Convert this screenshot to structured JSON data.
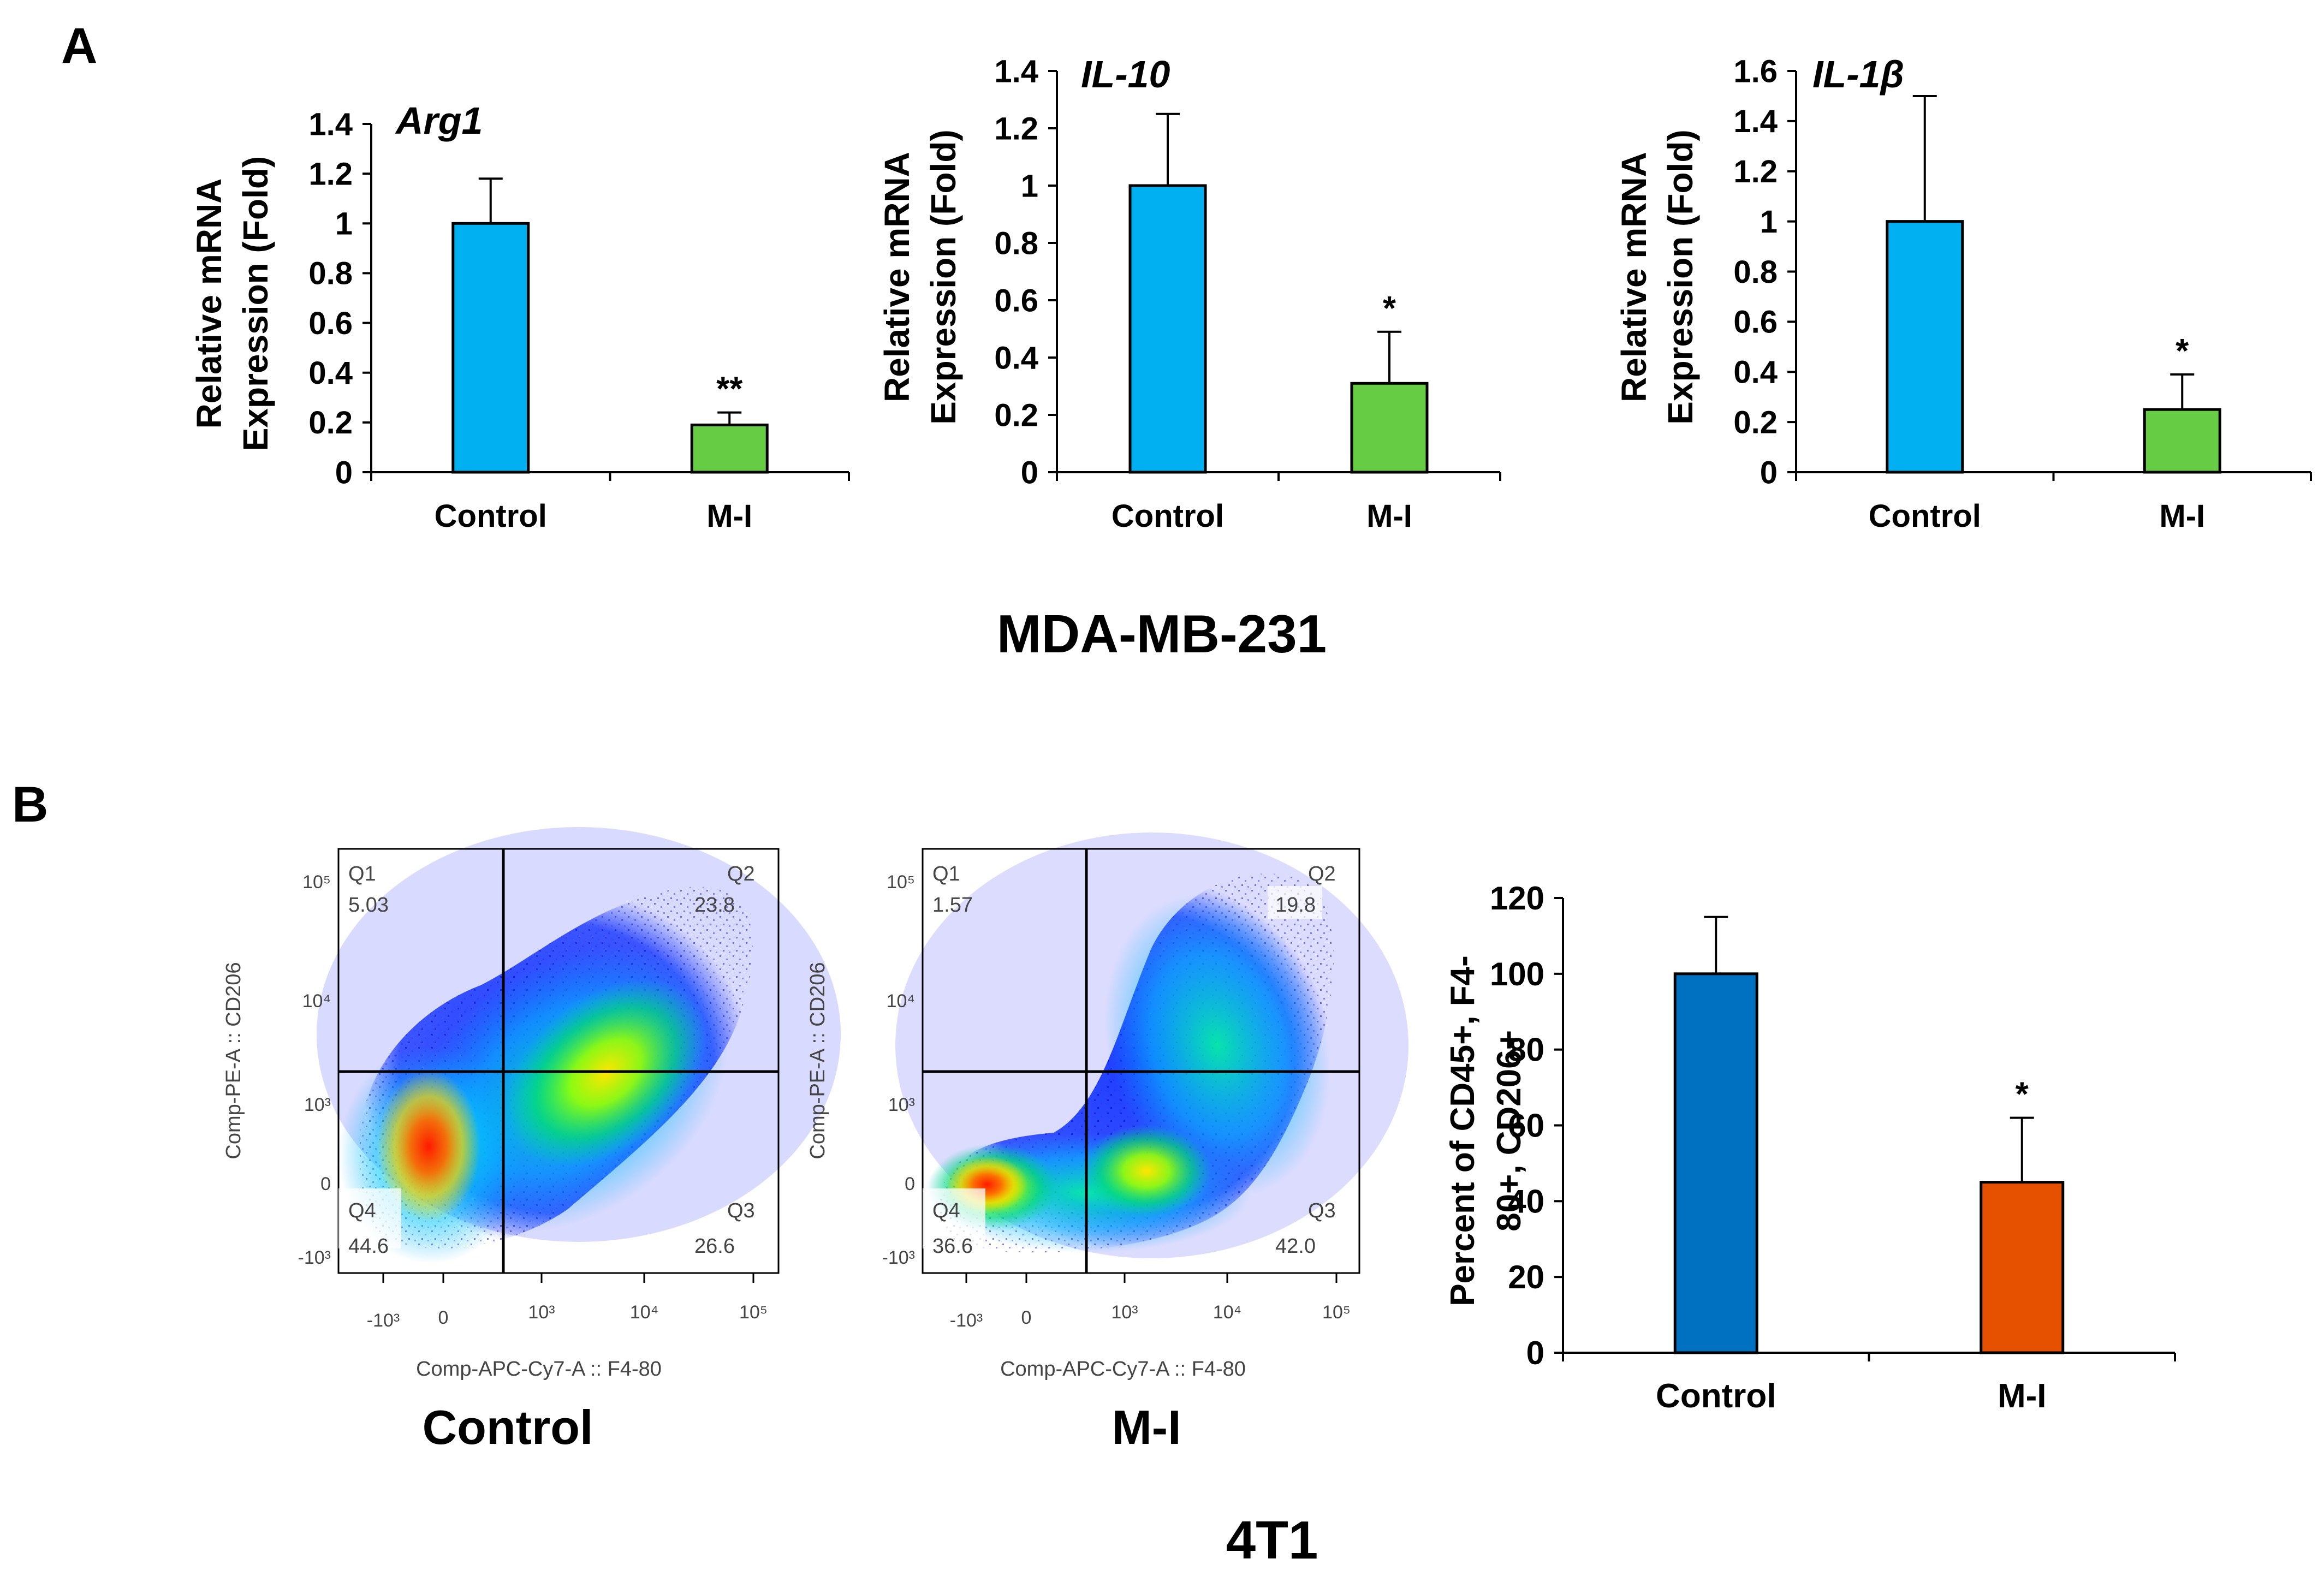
{
  "panel_labels": {
    "a": "A",
    "b": "B"
  },
  "panel_a_caption": "MDA-MB-231",
  "panel_b_caption": "4T1",
  "colors": {
    "control_a": "#00B0F0",
    "mi_a": "#66CC44",
    "control_b": "#0070C0",
    "mi_b": "#E65100"
  },
  "chart_data": [
    {
      "type": "bar",
      "title": "Arg1",
      "ylabel": [
        "Relative mRNA",
        "Expression (Fold)"
      ],
      "categories": [
        "Control",
        "M-I"
      ],
      "values": [
        1.0,
        0.19
      ],
      "errors": [
        0.18,
        0.05
      ],
      "annotations": [
        "",
        "**"
      ],
      "ylim": [
        0,
        1.4
      ],
      "yticks": [
        0,
        0.2,
        0.4,
        0.6,
        0.8,
        1,
        1.2,
        1.4
      ],
      "ytick_labels": [
        "0",
        "0.2",
        "0.4",
        "0.6",
        "0.8",
        "1",
        "1.2",
        "1.4"
      ],
      "colors": [
        "#00B0F0",
        "#66CC44"
      ]
    },
    {
      "type": "bar",
      "title": "IL-10",
      "ylabel": [
        "Relative mRNA",
        "Expression (Fold)"
      ],
      "categories": [
        "Control",
        "M-I"
      ],
      "values": [
        1.0,
        0.31
      ],
      "errors": [
        0.25,
        0.18
      ],
      "annotations": [
        "",
        "*"
      ],
      "ylim": [
        0,
        1.4
      ],
      "yticks": [
        0,
        0.2,
        0.4,
        0.6,
        0.8,
        1,
        1.2,
        1.4
      ],
      "ytick_labels": [
        "0",
        "0.2",
        "0.4",
        "0.6",
        "0.8",
        "1",
        "1.2",
        "1.4"
      ],
      "colors": [
        "#00B0F0",
        "#66CC44"
      ]
    },
    {
      "type": "bar",
      "title": "IL-1β",
      "ylabel": [
        "Relative mRNA",
        "Expression (Fold)"
      ],
      "categories": [
        "Control",
        "M-I"
      ],
      "values": [
        1.0,
        0.25
      ],
      "errors": [
        0.5,
        0.14
      ],
      "annotations": [
        "",
        "*"
      ],
      "ylim": [
        0,
        1.6
      ],
      "yticks": [
        0,
        0.2,
        0.4,
        0.6,
        0.8,
        1,
        1.2,
        1.4,
        1.6
      ],
      "ytick_labels": [
        "0",
        "0.2",
        "0.4",
        "0.6",
        "0.8",
        "1",
        "1.2",
        "1.4",
        "1.6"
      ],
      "colors": [
        "#00B0F0",
        "#66CC44"
      ]
    },
    {
      "type": "bar",
      "title": "",
      "ylabel": [
        "Percent of CD45+, F4-",
        "80+, CD206+"
      ],
      "categories": [
        "Control",
        "M-I"
      ],
      "values": [
        100,
        45
      ],
      "errors": [
        15,
        17
      ],
      "annotations": [
        "",
        "*"
      ],
      "ylim": [
        0,
        120
      ],
      "yticks": [
        0,
        20,
        40,
        60,
        80,
        100,
        120
      ],
      "ytick_labels": [
        "0",
        "20",
        "40",
        "60",
        "80",
        "100",
        "120"
      ],
      "colors": [
        "#0070C0",
        "#E65100"
      ]
    },
    {
      "type": "scatter",
      "title": "Control",
      "xlabel": "Comp-APC-Cy7-A :: F4-80",
      "ylabel": "Comp-PE-A :: CD206",
      "xtick_labels": [
        "-10³",
        "0",
        "10³",
        "10⁴",
        "10⁵"
      ],
      "ytick_labels": [
        "10⁵",
        "10⁴",
        "10³",
        "0",
        "-10³"
      ],
      "quadrants": [
        {
          "name": "Q1",
          "value": "5.03"
        },
        {
          "name": "Q2",
          "value": "23.8"
        },
        {
          "name": "Q3",
          "value": "26.6"
        },
        {
          "name": "Q4",
          "value": "44.6"
        }
      ]
    },
    {
      "type": "scatter",
      "title": "M-I",
      "xlabel": "Comp-APC-Cy7-A :: F4-80",
      "ylabel": "Comp-PE-A :: CD206",
      "xtick_labels": [
        "-10³",
        "0",
        "10³",
        "10⁴",
        "10⁵"
      ],
      "ytick_labels": [
        "10⁵",
        "10⁴",
        "10³",
        "0",
        "-10³"
      ],
      "quadrants": [
        {
          "name": "Q1",
          "value": "1.57"
        },
        {
          "name": "Q2",
          "value": "19.8"
        },
        {
          "name": "Q3",
          "value": "42.0"
        },
        {
          "name": "Q4",
          "value": "36.6"
        }
      ]
    }
  ]
}
